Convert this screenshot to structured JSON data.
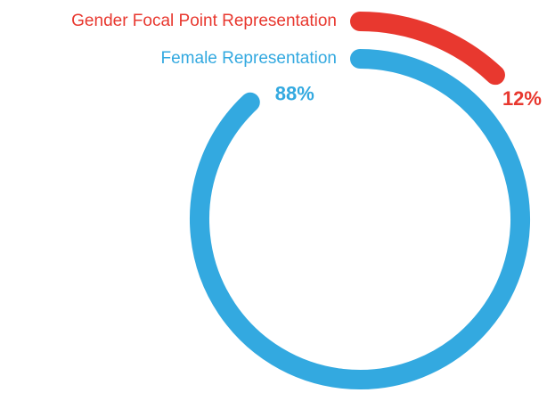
{
  "chart_data": {
    "type": "radial_bar",
    "series": [
      {
        "name": "Gender Focal Point Representation",
        "color": "#e8382f",
        "values": [
          12
        ],
        "value_labels": [
          "12%"
        ]
      },
      {
        "name": "Female Representation",
        "color": "#33a9e0",
        "values": [
          88
        ],
        "value_labels": [
          "88%"
        ]
      }
    ],
    "ylim": [
      0,
      100
    ]
  }
}
